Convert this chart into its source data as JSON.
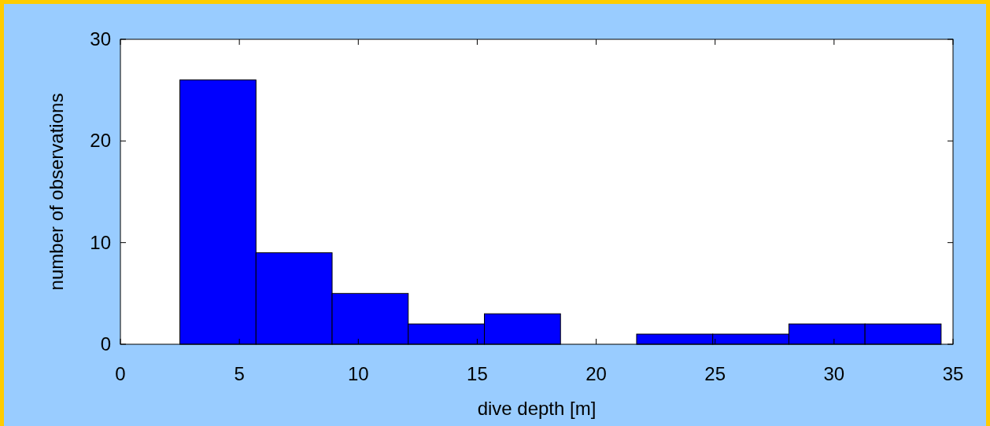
{
  "chart_data": {
    "type": "histogram",
    "xlabel": "dive depth  [m]",
    "ylabel": "number of observations",
    "bins": [
      2.5,
      5.7,
      8.9,
      12.1,
      15.3,
      18.5,
      21.7,
      24.9,
      28.1,
      31.3,
      34.5
    ],
    "values": [
      26,
      9,
      5,
      2,
      3,
      0,
      1,
      1,
      2,
      2
    ],
    "color": "#0000ff",
    "xlim": [
      0,
      35
    ],
    "xticks": [
      0,
      5,
      10,
      15,
      20,
      25,
      30,
      35
    ],
    "ylim": [
      0,
      30
    ],
    "yticks": [
      0,
      10,
      20,
      30
    ],
    "grid": false
  }
}
